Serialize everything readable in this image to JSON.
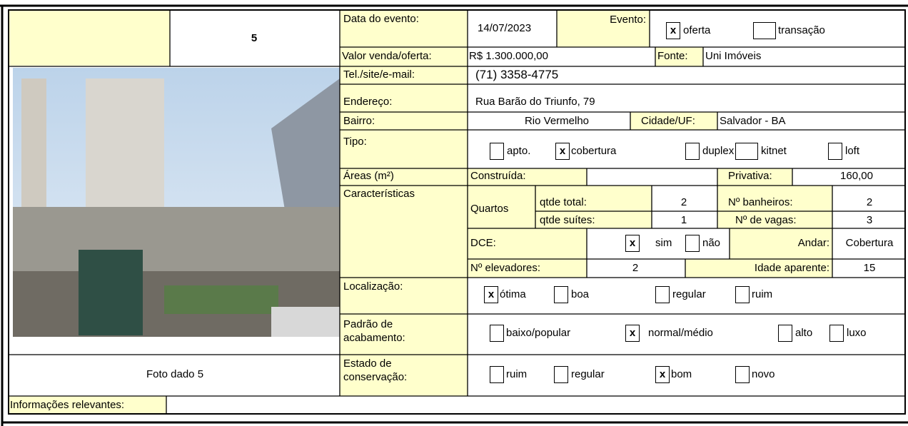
{
  "header": {
    "number": "5",
    "event_date_label": "Data do evento:",
    "event_date": "14/07/2023",
    "event_label": "Evento:",
    "event_options": [
      {
        "mark": "x",
        "label": "oferta"
      },
      {
        "label": "transação"
      }
    ]
  },
  "fields": {
    "sale_value_label": "Valor venda/oferta:",
    "sale_value": "R$ 1.300.000,00",
    "source_label": "Fonte:",
    "source": "Uni Imóveis",
    "contact_label": "Tel./site/e-mail:",
    "contact": "(71) 3358-4775",
    "address_label": "Endereço:",
    "address": "Rua Barão do Triunfo, 79",
    "district_label": "Bairro:",
    "district": "Rio Vermelho",
    "city_label": "Cidade/UF:",
    "city": "Salvador - BA",
    "type_label": "Tipo:",
    "type_options": [
      {
        "label": "apto."
      },
      {
        "mark": "x",
        "label": "cobertura"
      },
      {
        "label": "duplex"
      },
      {
        "label": "kitnet"
      },
      {
        "label": "loft"
      }
    ],
    "areas_label": "Áreas (m²)",
    "built_label": "Construída:",
    "private_label": "Privativa:",
    "private": "160,00",
    "features_label": "Características",
    "rooms_label": "Quartos",
    "rooms_total_label": "qtde total:",
    "rooms_total": "2",
    "bathrooms_label": "Nº banheiros:",
    "bathrooms": "2",
    "suites_label": "qtde suítes:",
    "suites": "1",
    "parking_label": "Nº de vagas:",
    "parking": "3",
    "dce_label": "DCE:",
    "dce_options": [
      {
        "mark": "x",
        "label": "sim"
      },
      {
        "label": "não"
      }
    ],
    "floor_label": "Andar:",
    "floor": "Cobertura",
    "elevators_label": "Nº elevadores:",
    "elevators": "2",
    "age_label": "Idade aparente:",
    "age": "15",
    "location_label": "Localização:",
    "location_options": [
      {
        "mark": "x",
        "label": "ótima"
      },
      {
        "label": "boa"
      },
      {
        "label": "regular"
      },
      {
        "label": "ruim"
      }
    ],
    "finish_label": "Padrão de acabamento:",
    "finish_options": [
      {
        "label": "baixo/popular"
      },
      {
        "mark": "x",
        "label": "normal/médio"
      },
      {
        "label": "alto"
      },
      {
        "label": "luxo"
      }
    ],
    "condition_label": "Estado de conservação:",
    "condition_options": [
      {
        "label": "ruim"
      },
      {
        "label": "regular"
      },
      {
        "mark": "x",
        "label": "bom"
      },
      {
        "label": "novo"
      }
    ]
  },
  "photo_caption": "Foto dado 5",
  "notes_label": "Informações relevantes:"
}
